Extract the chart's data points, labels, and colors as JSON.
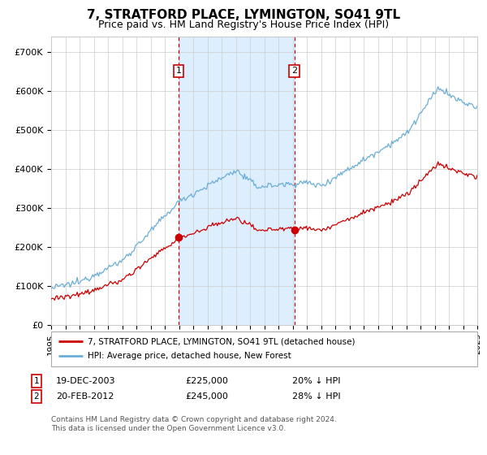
{
  "title": "7, STRATFORD PLACE, LYMINGTON, SO41 9TL",
  "subtitle": "Price paid vs. HM Land Registry's House Price Index (HPI)",
  "title_fontsize": 11,
  "subtitle_fontsize": 9,
  "background_color": "#ffffff",
  "grid_color": "#cccccc",
  "hpi_color": "#6baed6",
  "price_color": "#cc0000",
  "sale1_year": 2003.97,
  "sale1_price": 225000,
  "sale2_year": 2012.13,
  "sale2_price": 245000,
  "shade_color": "#ddeeff",
  "vline_color": "#cc0000",
  "legend_label_price": "7, STRATFORD PLACE, LYMINGTON, SO41 9TL (detached house)",
  "legend_label_hpi": "HPI: Average price, detached house, New Forest",
  "copyright": "Contains HM Land Registry data © Crown copyright and database right 2024.\nThis data is licensed under the Open Government Licence v3.0.",
  "xmin": 1995,
  "xmax": 2025,
  "yticks": [
    0,
    100000,
    200000,
    300000,
    400000,
    500000,
    600000,
    700000
  ],
  "ytick_labels": [
    "£0",
    "£100K",
    "£200K",
    "£300K",
    "£400K",
    "£500K",
    "£600K",
    "£700K"
  ],
  "ylim": [
    0,
    740000
  ]
}
